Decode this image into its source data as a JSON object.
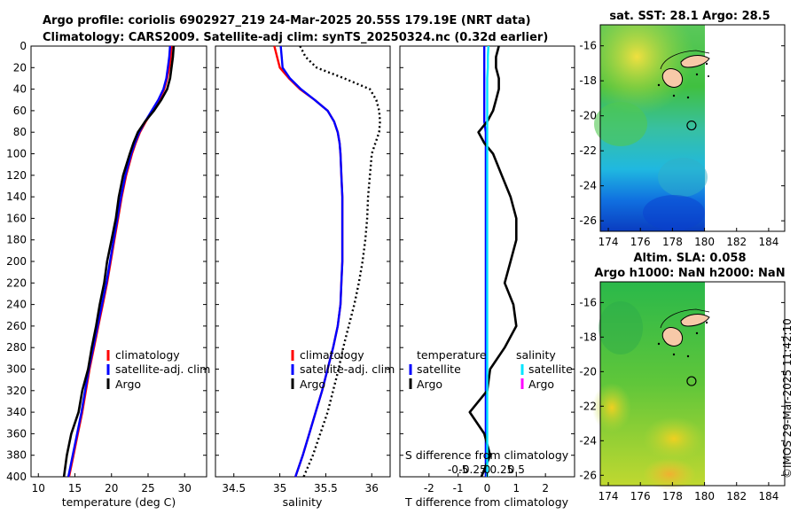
{
  "header": {
    "line1": "Argo profile: coriolis 6902927_219 24-Mar-2025 20.55S 179.19E (NRT data)",
    "line2": "Climatology: CARS2009. Satellite-adj clim: synTS_20250324.nc (0.32d earlier)"
  },
  "footer": {
    "credit": "©IMOS 29-Mar-2025 11:42:10"
  },
  "colors": {
    "climatology": "#ff0000",
    "satellite_clim": "#0000ff",
    "argo": "#000000",
    "t_satellite": "#0000ff",
    "s_satellite": "#00e5ff",
    "s_argo": "#ff00ff",
    "coast_fill": "#f7c9a8"
  },
  "chart_data": [
    {
      "type": "line",
      "panel": "temperature",
      "xlabel": "temperature (deg C)",
      "ylabel": "",
      "xlim": [
        9,
        33
      ],
      "ylim": [
        400,
        0
      ],
      "xticks": [
        10,
        15,
        20,
        25,
        30
      ],
      "yticks": [
        0,
        20,
        40,
        60,
        80,
        100,
        120,
        140,
        160,
        180,
        200,
        220,
        240,
        260,
        280,
        300,
        320,
        340,
        360,
        380,
        400
      ],
      "depth": [
        0,
        10,
        20,
        30,
        40,
        50,
        60,
        70,
        80,
        90,
        100,
        120,
        140,
        160,
        180,
        200,
        220,
        240,
        260,
        280,
        300,
        320,
        340,
        360,
        380,
        400
      ],
      "series": [
        {
          "name": "climatology",
          "style": "solid",
          "values": [
            28.2,
            28.1,
            27.9,
            27.6,
            27.2,
            26.5,
            25.6,
            24.7,
            23.9,
            23.3,
            22.8,
            22.0,
            21.4,
            20.9,
            20.4,
            19.9,
            19.4,
            18.8,
            18.2,
            17.6,
            17.0,
            16.5,
            16.0,
            15.4,
            14.8,
            14.2
          ]
        },
        {
          "name": "satellite-adj. clim",
          "style": "solid",
          "values": [
            28.0,
            27.9,
            27.7,
            27.5,
            27.1,
            26.4,
            25.5,
            24.6,
            23.8,
            23.2,
            22.7,
            21.9,
            21.3,
            20.8,
            20.3,
            19.8,
            19.3,
            18.7,
            18.1,
            17.5,
            16.9,
            16.4,
            15.9,
            15.3,
            14.7,
            14.1
          ]
        },
        {
          "name": "Argo",
          "style": "solid",
          "values": [
            28.5,
            28.4,
            28.2,
            28.0,
            27.6,
            26.8,
            25.8,
            24.6,
            23.6,
            23.0,
            22.5,
            21.6,
            21.0,
            20.6,
            20.0,
            19.4,
            19.0,
            18.4,
            17.9,
            17.3,
            16.8,
            16.0,
            15.5,
            14.5,
            13.9,
            13.5
          ]
        }
      ],
      "legend": [
        "climatology",
        "satellite-adj. clim",
        "Argo"
      ]
    },
    {
      "type": "line",
      "panel": "salinity",
      "xlabel": "salinity",
      "xlim": [
        34.3,
        36.2
      ],
      "ylim": [
        400,
        0
      ],
      "xticks": [
        34.5,
        35,
        35.5,
        36
      ],
      "xtick_labels": [
        "34.5",
        "35",
        "35.5",
        "36"
      ],
      "depth": [
        0,
        10,
        20,
        30,
        40,
        50,
        60,
        70,
        80,
        90,
        100,
        120,
        140,
        160,
        180,
        200,
        220,
        240,
        260,
        280,
        300,
        320,
        340,
        360,
        380,
        400
      ],
      "series": [
        {
          "name": "climatology",
          "style": "solid",
          "values": [
            34.94,
            34.97,
            35.0,
            35.1,
            35.22,
            35.38,
            35.52,
            35.59,
            35.63,
            35.65,
            35.66,
            35.67,
            35.68,
            35.68,
            35.68,
            35.68,
            35.67,
            35.66,
            35.63,
            35.58,
            35.52,
            35.46,
            35.39,
            35.32,
            35.25,
            35.17
          ]
        },
        {
          "name": "satellite-adj. clim",
          "style": "solid",
          "values": [
            35.01,
            35.02,
            35.03,
            35.11,
            35.23,
            35.38,
            35.52,
            35.59,
            35.63,
            35.65,
            35.66,
            35.67,
            35.68,
            35.68,
            35.68,
            35.68,
            35.67,
            35.66,
            35.63,
            35.58,
            35.52,
            35.46,
            35.39,
            35.32,
            35.25,
            35.17
          ]
        },
        {
          "name": "Argo",
          "style": "dotted",
          "values": [
            35.22,
            35.28,
            35.4,
            35.7,
            35.98,
            36.05,
            36.08,
            36.09,
            36.08,
            36.04,
            36.0,
            35.98,
            35.96,
            35.95,
            35.93,
            35.9,
            35.86,
            35.81,
            35.75,
            35.69,
            35.64,
            35.58,
            35.52,
            35.44,
            35.36,
            35.26
          ]
        }
      ],
      "legend": [
        "climatology",
        "satellite-adj. clim",
        "Argo"
      ]
    },
    {
      "type": "line",
      "panel": "difference",
      "xlabel": "T difference from climatology",
      "top_axis_label": "S difference from climatology",
      "xlim": [
        -3,
        3
      ],
      "ylim": [
        400,
        0
      ],
      "xticks": [
        -2,
        -1,
        0,
        1,
        2
      ],
      "xtick_labels": [
        "-2",
        "-1",
        "0",
        "1",
        "2"
      ],
      "s_xticks": [
        -0.5,
        -0.25,
        0,
        0.25,
        0.5
      ],
      "s_xtick_labels": [
        "-0.5",
        "-0.25",
        "0",
        "0.25",
        "0.5"
      ],
      "depth": [
        0,
        10,
        20,
        30,
        40,
        50,
        60,
        70,
        80,
        90,
        100,
        120,
        140,
        160,
        180,
        200,
        220,
        240,
        260,
        280,
        300,
        320,
        340,
        360,
        380,
        400
      ],
      "series": [
        {
          "name": "temperature satellite",
          "style": "solid",
          "values": [
            -0.1,
            -0.1,
            -0.1,
            -0.1,
            -0.1,
            -0.1,
            -0.1,
            -0.1,
            -0.05,
            -0.05,
            -0.05,
            -0.05,
            -0.05,
            -0.05,
            -0.05,
            -0.05,
            -0.05,
            -0.05,
            -0.05,
            -0.05,
            -0.05,
            -0.05,
            -0.05,
            -0.05,
            -0.05,
            -0.05
          ]
        },
        {
          "name": "temperature Argo",
          "style": "solid",
          "values": [
            0.4,
            0.3,
            0.3,
            0.4,
            0.4,
            0.3,
            0.2,
            0.0,
            -0.3,
            -0.1,
            0.2,
            0.5,
            0.8,
            1.0,
            1.0,
            0.8,
            0.6,
            0.9,
            1.0,
            0.6,
            0.1,
            0.0,
            -0.6,
            -0.1,
            0.1,
            -0.2
          ]
        },
        {
          "name": "salinity satellite",
          "style": "solid",
          "values": [
            0.02,
            0.01,
            0.01,
            0.0,
            0.0,
            0.0,
            0.0,
            0.0,
            0.0,
            0.0,
            0.0,
            0.0,
            0.0,
            0.0,
            0.0,
            0.0,
            0.0,
            0.0,
            0.0,
            0.0,
            0.0,
            0.0,
            0.0,
            0.0,
            0.0,
            0.0
          ]
        }
      ],
      "legend_temperature": {
        "title": "temperature",
        "items": [
          "satellite",
          "Argo"
        ]
      },
      "legend_salinity": {
        "title": "salinity",
        "items": [
          "satellite",
          "Argo"
        ]
      }
    },
    {
      "type": "heatmap",
      "panel": "map-sst",
      "title": "sat. SST: 28.1 Argo: 28.5",
      "xticks": [
        174,
        176,
        178,
        180,
        182,
        184
      ],
      "yticks": [
        -16,
        -18,
        -20,
        -22,
        -24,
        -26
      ],
      "xlim": [
        173.5,
        185
      ],
      "ylim": [
        -26.6,
        -14.8
      ],
      "float_position": {
        "lon": 179.19,
        "lat": -20.55
      }
    },
    {
      "type": "heatmap",
      "panel": "map-sla",
      "title": "Altim. SLA: 0.058",
      "subtitle": "Argo h1000: NaN h2000: NaN",
      "xticks": [
        174,
        176,
        178,
        180,
        182,
        184
      ],
      "yticks": [
        -16,
        -18,
        -20,
        -22,
        -24,
        -26
      ],
      "xlim": [
        173.5,
        185
      ],
      "ylim": [
        -26.6,
        -14.8
      ],
      "float_position": {
        "lon": 179.19,
        "lat": -20.55
      }
    }
  ]
}
